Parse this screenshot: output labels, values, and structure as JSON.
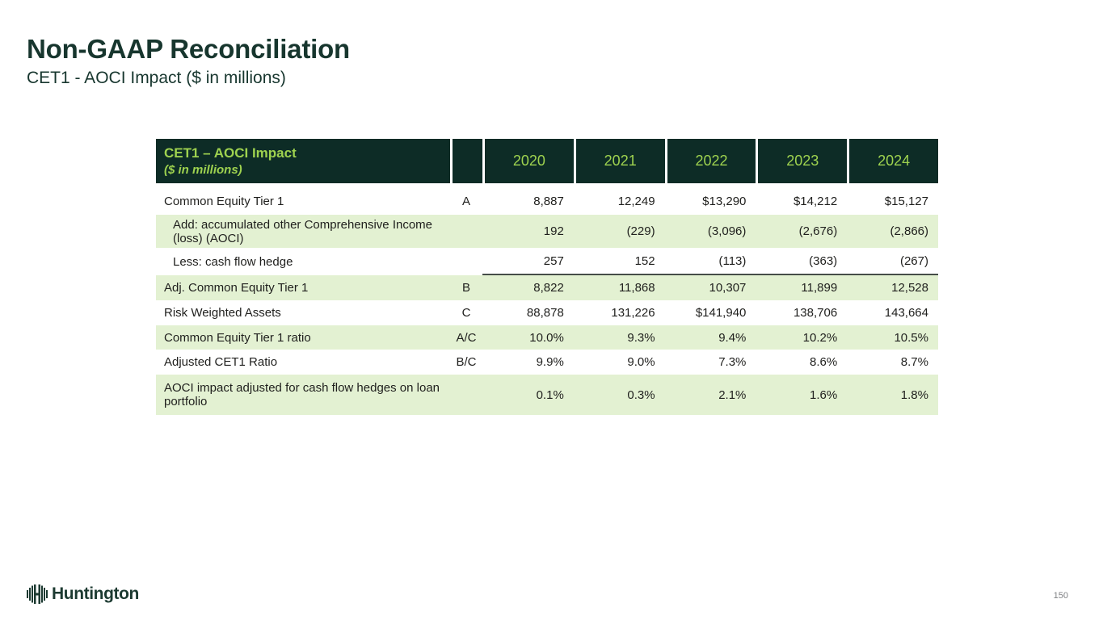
{
  "slide": {
    "title": "Non-GAAP Reconciliation",
    "subtitle": "CET1 - AOCI Impact ($ in millions)",
    "page_number": "150",
    "logo_text": "Huntington"
  },
  "colors": {
    "header_background": "#0d2c26",
    "header_text_lime": "#9ed24f",
    "shaded_row_green": "#e3f1d2",
    "title_dark_teal": "#17362e",
    "body_text": "#1f1f1d",
    "sum_underline": "#454d48",
    "page_number_gray": "#808285"
  },
  "table": {
    "header": {
      "title": "CET1 – AOCI Impact",
      "subtitle": "($ in millions)",
      "years": [
        "2020",
        "2021",
        "2022",
        "2023",
        "2024"
      ]
    },
    "rows": [
      {
        "label": "Common Equity Tier 1",
        "ref": "A",
        "indent": false,
        "shaded": false,
        "underline": false,
        "values": [
          "8,887",
          "12,249",
          "$13,290",
          "$14,212",
          "$15,127"
        ]
      },
      {
        "label": "Add: accumulated other Comprehensive Income (loss) (AOCI)",
        "ref": "",
        "indent": true,
        "shaded": true,
        "underline": false,
        "values": [
          "192",
          "(229)",
          "(3,096)",
          "(2,676)",
          "(2,866)"
        ]
      },
      {
        "label": "Less: cash flow hedge",
        "ref": "",
        "indent": true,
        "shaded": false,
        "underline": true,
        "values": [
          "257",
          "152",
          "(113)",
          "(363)",
          "(267)"
        ]
      },
      {
        "label": "Adj. Common Equity Tier 1",
        "ref": "B",
        "indent": false,
        "shaded": true,
        "underline": false,
        "values": [
          "8,822",
          "11,868",
          "10,307",
          "11,899",
          "12,528"
        ]
      },
      {
        "label": "Risk Weighted Assets",
        "ref": "C",
        "indent": false,
        "shaded": false,
        "underline": false,
        "values": [
          "88,878",
          "131,226",
          "$141,940",
          "138,706",
          "143,664"
        ]
      },
      {
        "label": "Common Equity Tier 1 ratio",
        "ref": "A/C",
        "indent": false,
        "shaded": true,
        "underline": false,
        "values": [
          "10.0%",
          "9.3%",
          "9.4%",
          "10.2%",
          "10.5%"
        ]
      },
      {
        "label": "Adjusted CET1 Ratio",
        "ref": "B/C",
        "indent": false,
        "shaded": false,
        "underline": false,
        "values": [
          "9.9%",
          "9.0%",
          "7.3%",
          "8.6%",
          "8.7%"
        ]
      },
      {
        "label": "AOCI impact adjusted for cash flow hedges on loan portfolio",
        "ref": "",
        "indent": false,
        "shaded": true,
        "underline": false,
        "values": [
          "0.1%",
          "0.3%",
          "2.1%",
          "1.6%",
          "1.8%"
        ]
      }
    ]
  }
}
